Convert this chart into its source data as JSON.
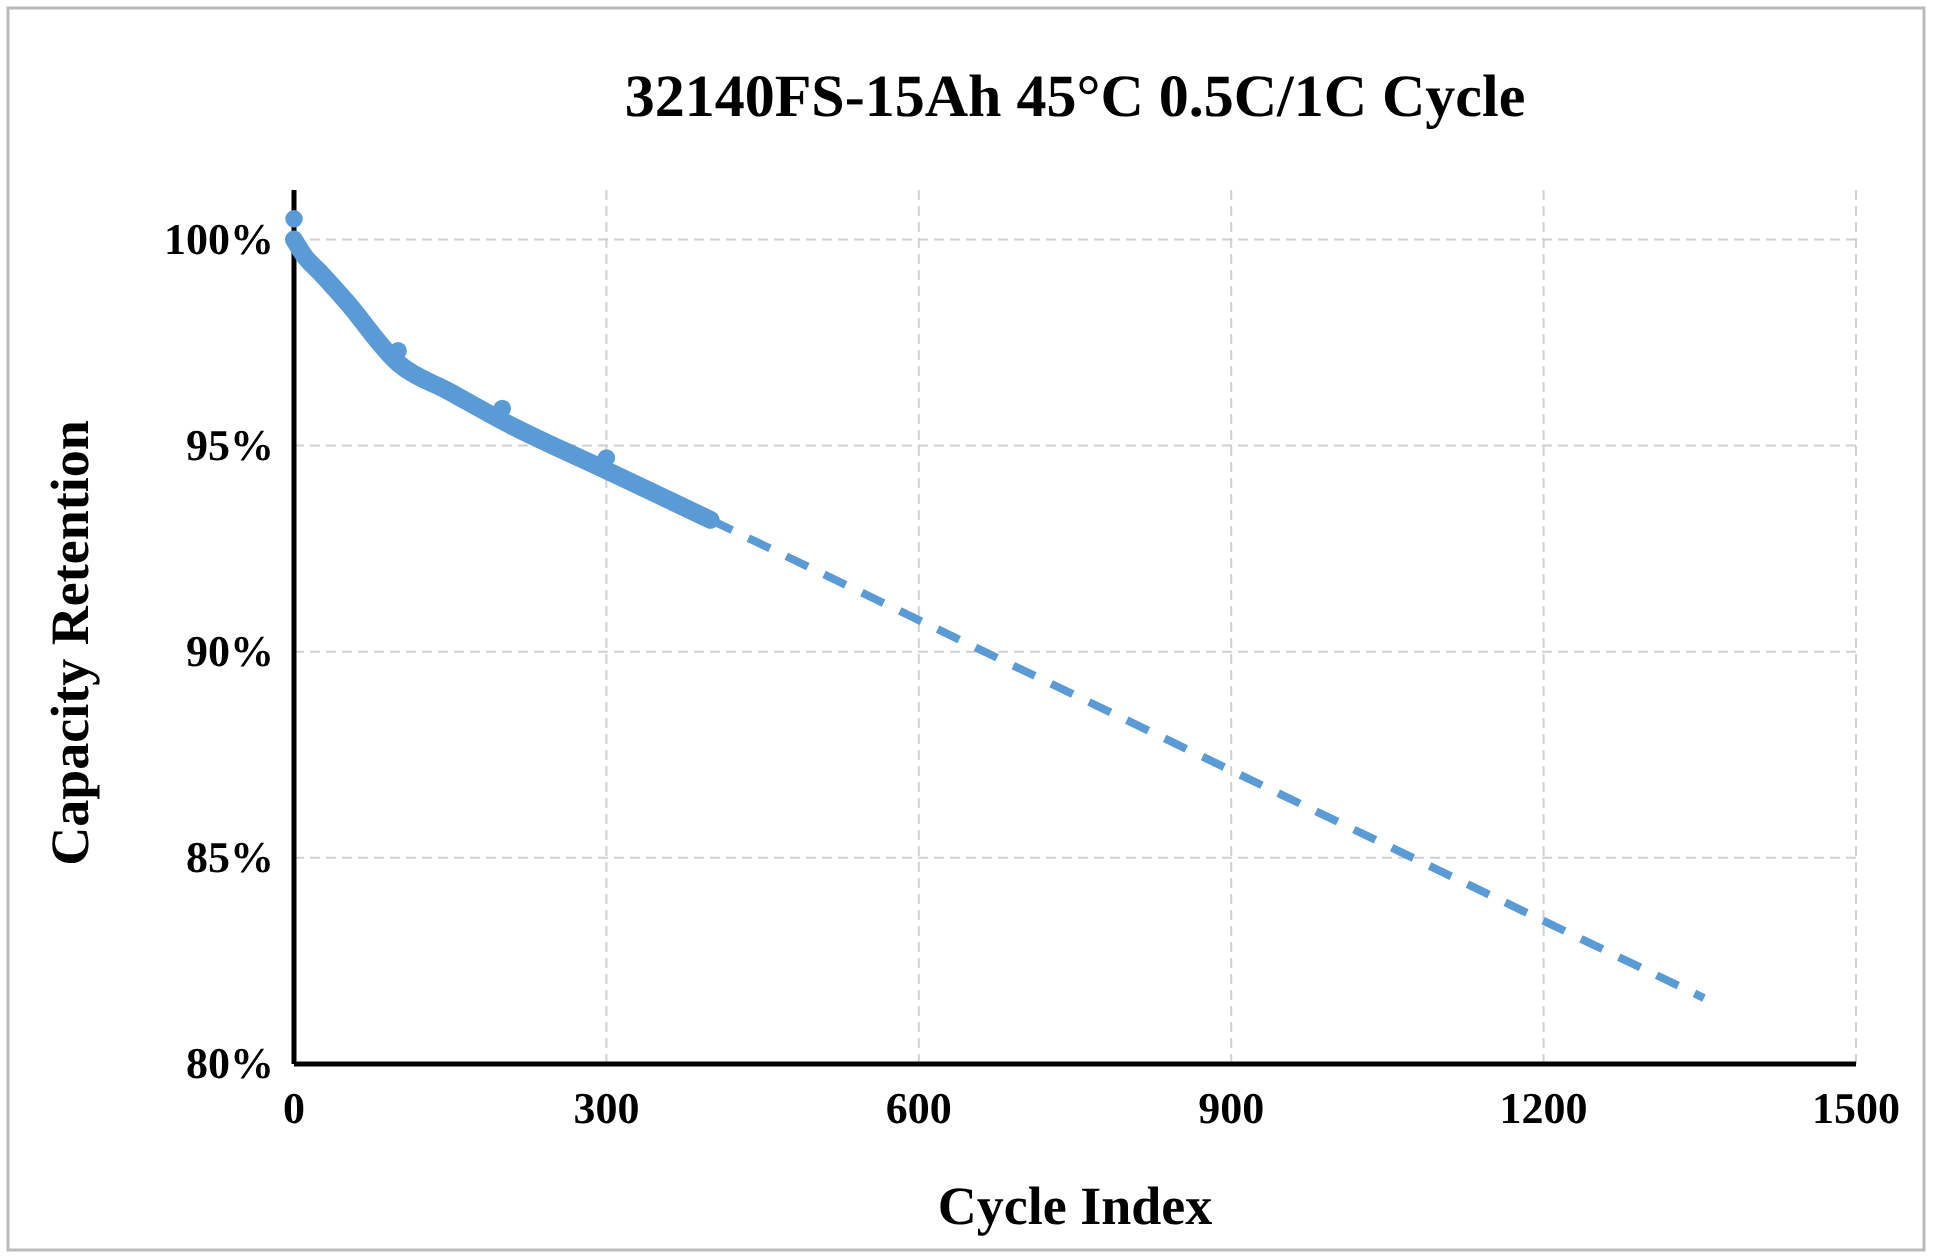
{
  "chart_data": {
    "type": "line",
    "title": "32140FS-15Ah 45°C 0.5C/1C Cycle",
    "xlabel": "Cycle Index",
    "ylabel": "Capacity Retention",
    "xlim": [
      0,
      1500
    ],
    "xticks": [
      0,
      300,
      600,
      900,
      1200,
      1500
    ],
    "ylim": [
      80,
      101.2
    ],
    "yticks": [
      {
        "value": 80,
        "label": "80%"
      },
      {
        "value": 85,
        "label": "85%"
      },
      {
        "value": 90,
        "label": "90%"
      },
      {
        "value": 95,
        "label": "95%"
      },
      {
        "value": 100,
        "label": "100%"
      }
    ],
    "grid": true,
    "series": [
      {
        "color": "#5b9bd5",
        "line_style": "solid",
        "x": [
          0,
          10,
          25,
          50,
          100,
          150,
          200,
          300,
          400
        ],
        "values": [
          100.0,
          99.6,
          99.2,
          98.5,
          97.0,
          96.3,
          95.6,
          94.4,
          93.2
        ]
      },
      {
        "type": "line",
        "color": "#5b9bd5",
        "line_style": "dashed",
        "x": [
          400,
          1354
        ],
        "values": [
          93.2,
          81.6
        ]
      },
      {
        "type": "scatter",
        "color": "#5b9bd5",
        "marker": "circle",
        "x": [
          0,
          100,
          200,
          300
        ],
        "values": [
          100.5,
          97.3,
          95.9,
          94.7
        ]
      }
    ]
  }
}
